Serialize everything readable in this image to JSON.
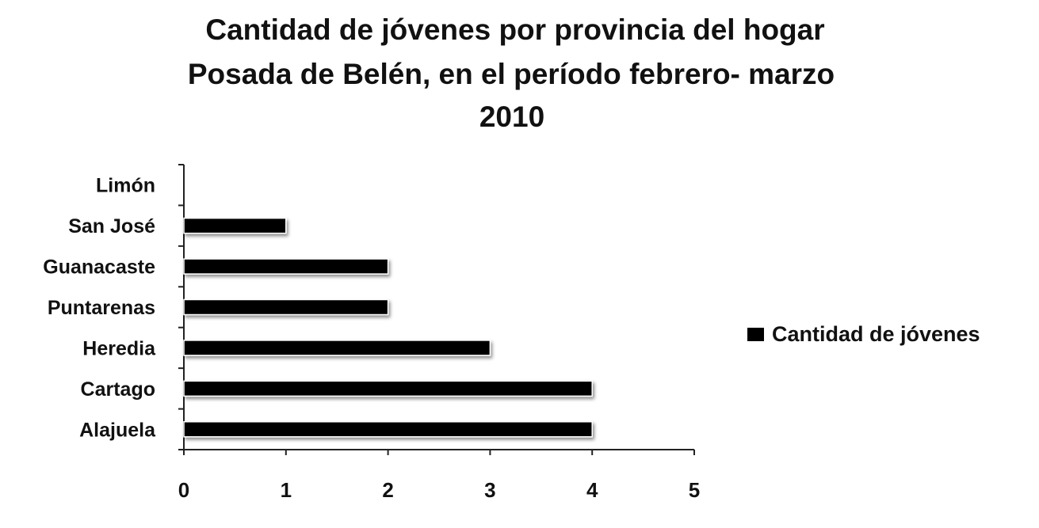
{
  "chart_data": {
    "type": "bar",
    "orientation": "horizontal",
    "title": "Cantidad de jóvenes por provincia del hogar Posada de Belén, en el período febrero- marzo 2010",
    "title_lines": [
      "Cantidad de jóvenes por provincia del hogar",
      "Posada de Belén, en el período febrero- marzo",
      "2010"
    ],
    "categories": [
      "Alajuela",
      "Cartago",
      "Heredia",
      "Puntarenas",
      "Guanacaste",
      "San José",
      "Limón"
    ],
    "series": [
      {
        "name": "Cantidad de jóvenes",
        "values": [
          4,
          4,
          3,
          2,
          2,
          1,
          0
        ],
        "color": "#000000"
      }
    ],
    "xlim": [
      0,
      5
    ],
    "x_ticks": [
      0,
      1,
      2,
      3,
      4,
      5
    ],
    "xlabel": "",
    "ylabel": "",
    "grid": false,
    "legend_position": "right"
  }
}
